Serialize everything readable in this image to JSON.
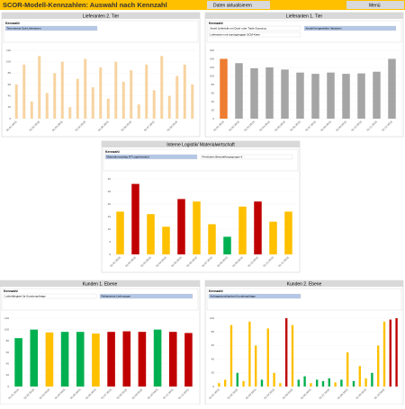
{
  "header": {
    "title": "SCOR-Modell-Kennzahlen: Auswahl nach Kennzahl",
    "refresh_button": "Daten aktualisieren",
    "menu_button": "Menü"
  },
  "chart_data": [
    {
      "type": "bar",
      "title": "Lieferanten 2. Tier",
      "filter_title": "Kennzahl",
      "filter_items": [
        {
          "label": "Termintreue Sub-Lieferanten",
          "selected": true
        }
      ],
      "categories": [
        "01.01.2015",
        null,
        null,
        "01.02.2015",
        null,
        null,
        "01.03.2015",
        null,
        null,
        "01.04.2015",
        null,
        null,
        "01.05.2015",
        null,
        null,
        "01.06.2015",
        null,
        null,
        "01.07.2015",
        null,
        null,
        "01.08.2015",
        null,
        null
      ],
      "values": [
        60,
        95,
        30,
        110,
        45,
        80,
        100,
        20,
        70,
        105,
        55,
        90,
        35,
        100,
        65,
        85,
        25,
        95,
        50,
        110,
        40,
        75,
        95,
        60
      ],
      "color": "#f7d3a0",
      "ylim": [
        0,
        120
      ],
      "yticks": [
        0,
        20,
        40,
        60,
        80,
        100,
        120
      ]
    },
    {
      "type": "bar",
      "title": "Lieferanten 1. Tier",
      "filter_title": "Kennzahl",
      "filter_items": [
        {
          "label": "Anteil Lieferteile mit Dual- oder Triple-Sourcing",
          "selected": false
        },
        {
          "label": "Anzahl hergestellter Varianten",
          "selected": true
        },
        {
          "label": "Lieferanten mit durchgängiger SCM-Kette",
          "selected": false
        }
      ],
      "categories": [
        "01.01.2015",
        "01.02.2015",
        "01.03.2015",
        "01.04.2015",
        "01.05.2015",
        "01.06.2015",
        "01.07.2015",
        "01.08.2015",
        "01.09.2015",
        "01.10.2015",
        "01.11.2015",
        "01.12.2015"
      ],
      "values": [
        140,
        130,
        118,
        120,
        115,
        108,
        105,
        108,
        105,
        106,
        110,
        140
      ],
      "colors": [
        "#ed7d31",
        "#a5a5a5",
        "#a5a5a5",
        "#a5a5a5",
        "#a5a5a5",
        "#a5a5a5",
        "#a5a5a5",
        "#a5a5a5",
        "#a5a5a5",
        "#a5a5a5",
        "#a5a5a5",
        "#a5a5a5"
      ],
      "ylim": [
        0,
        160
      ],
      "yticks": [
        0,
        20,
        40,
        60,
        80,
        100,
        120,
        140,
        160
      ]
    },
    {
      "type": "bar",
      "title": "Interne Logistik/ Materialwirtschaft",
      "filter_title": "Kennzahl",
      "filter_items": [
        {
          "label": "Materialumschlag ET-Lagerbestand",
          "selected": true
        },
        {
          "label": "Preisindex Beschaffungsgruppe 6",
          "selected": false
        }
      ],
      "categories": [
        "01.01.2015",
        "01.02.2015",
        "01.03.2015",
        "01.04.2015",
        "01.05.2015",
        "01.06.2015",
        "01.07.2015",
        "01.08.2015",
        "01.09.2015",
        "01.10.2015",
        "01.11.2015",
        "01.12.2015"
      ],
      "values": [
        17,
        28,
        16,
        11,
        22,
        21,
        12,
        7,
        19,
        21,
        13,
        17
      ],
      "colors": [
        "#ffc000",
        "#c00000",
        "#ffc000",
        "#ffc000",
        "#c00000",
        "#ffc000",
        "#ffc000",
        "#00b050",
        "#ffc000",
        "#c00000",
        "#ffc000",
        "#ffc000"
      ],
      "ylim": [
        0,
        30
      ],
      "yticks": [
        0,
        5,
        10,
        15,
        20,
        25,
        30
      ]
    },
    {
      "type": "bar",
      "title": "Kunden 1. Ebene",
      "filter_title": "Kennzahl",
      "filter_items": [
        {
          "label": "Lieferfähigkeit für Kundenaufträge",
          "selected": false
        },
        {
          "label": "Reklamierte Lieferungen",
          "selected": true
        }
      ],
      "categories": [
        "01.01.2015",
        "01.02.2015",
        "01.03.2015",
        "01.04.2015",
        "01.05.2015",
        "01.06.2015",
        "01.07.2015",
        "01.08.2015",
        "01.09.2015",
        "01.10.2015",
        "01.11.2015",
        "01.12.2015"
      ],
      "values": [
        85,
        100,
        95,
        96,
        96,
        93,
        96,
        97,
        96,
        100,
        96,
        94
      ],
      "colors": [
        "#00b050",
        "#00b050",
        "#ffc000",
        "#00b050",
        "#00b050",
        "#ffc000",
        "#c00000",
        "#c00000",
        "#c00000",
        "#00b050",
        "#c00000",
        "#c00000"
      ],
      "ylim": [
        0,
        120
      ],
      "yticks": [
        0,
        20,
        40,
        60,
        80,
        100,
        120
      ]
    },
    {
      "type": "bar",
      "title": "Kunden 2. Ebene",
      "filter_title": "Kennzahl",
      "filter_items": [
        {
          "label": "Auftragsdurchlaufzeit Kundenaufträge",
          "selected": true
        }
      ],
      "categories": [
        "01.01.2015",
        null,
        null,
        "01.02.2015",
        null,
        null,
        "01.03.2015",
        null,
        null,
        "01.04.2015",
        null,
        null,
        "01.05.2015",
        null,
        null,
        "01.06.2015",
        null,
        null,
        "01.07.2015",
        null,
        null,
        "01.08.2015",
        null,
        null,
        "01.09.2015",
        null,
        null,
        "01.10.2015",
        null,
        null
      ],
      "values": [
        5,
        10,
        90,
        20,
        8,
        95,
        60,
        10,
        85,
        20,
        5,
        100,
        90,
        10,
        15,
        5,
        10,
        8,
        12,
        6,
        10,
        50,
        8,
        30,
        12,
        20,
        60,
        95,
        98,
        100
      ],
      "colors": [
        "#ffc000",
        "#ffc000",
        "#ffc000",
        "#00b050",
        "#ffc000",
        "#ffc000",
        "#ffc000",
        "#00b050",
        "#ffc000",
        "#ffc000",
        "#ffc000",
        "#c00000",
        "#ffc000",
        "#00b050",
        "#00b050",
        "#ffc000",
        "#00b050",
        "#00b050",
        "#00b050",
        "#ffc000",
        "#00b050",
        "#ffc000",
        "#00b050",
        "#ffc000",
        "#ffc000",
        "#00b050",
        "#ffc000",
        "#ffc000",
        "#c00000",
        "#c00000"
      ],
      "ylim": [
        0,
        100
      ],
      "yticks": [
        0,
        20,
        40,
        60,
        80,
        100
      ]
    }
  ]
}
